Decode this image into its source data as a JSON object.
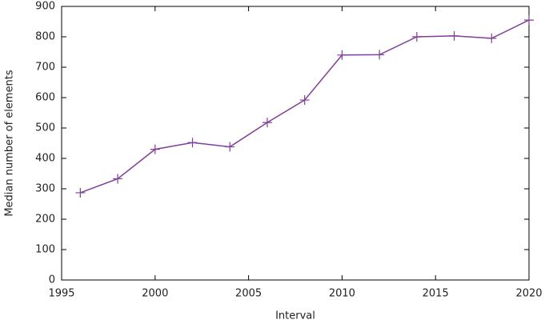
{
  "chart_data": {
    "type": "line",
    "x_label": "Interval",
    "y_label": "Median number of elements",
    "x": [
      1996,
      1998,
      2000,
      2002,
      2004,
      2006,
      2008,
      2010,
      2012,
      2014,
      2016,
      2018,
      2020
    ],
    "series": [
      {
        "color": "#7f3f98",
        "values": [
          287,
          333,
          430,
          452,
          438,
          518,
          592,
          740,
          741,
          800,
          803,
          795,
          855
        ]
      }
    ],
    "xlim": [
      1995,
      2020
    ],
    "xticks": [
      1995,
      2000,
      2005,
      2010,
      2015,
      2020
    ],
    "ylim": [
      0,
      900
    ],
    "yticks": [
      0,
      100,
      200,
      300,
      400,
      500,
      600,
      700,
      800,
      900
    ],
    "grid": false
  }
}
